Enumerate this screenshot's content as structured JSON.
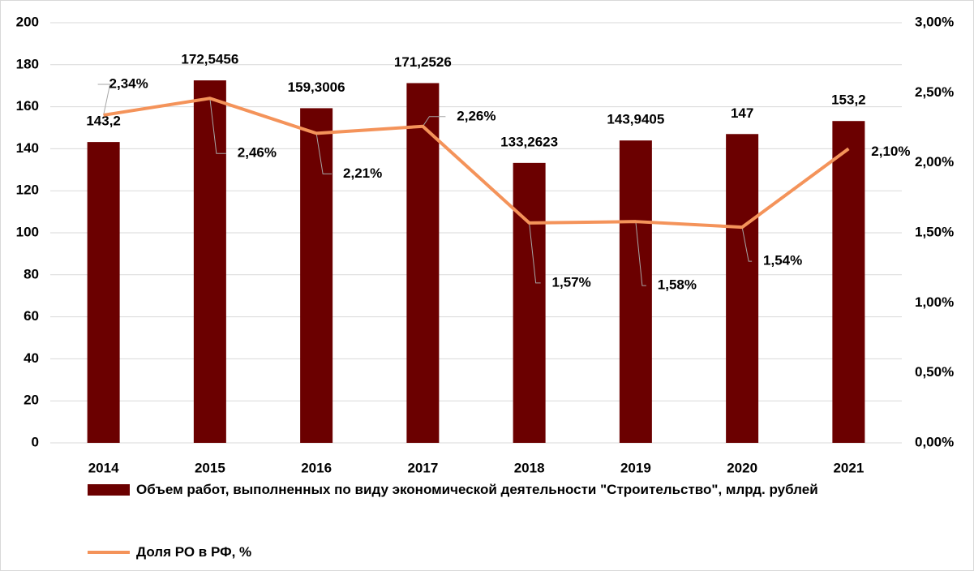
{
  "chart_data": {
    "type": "bar",
    "categories": [
      "2014",
      "2015",
      "2016",
      "2017",
      "2018",
      "2019",
      "2020",
      "2021"
    ],
    "series": [
      {
        "name": "Объем работ, выполненных по виду экономической деятельности \"Строительство\", млрд. рублей",
        "type": "bar",
        "color": "#6b0000",
        "values": [
          143.2,
          172.5456,
          159.3006,
          171.2526,
          133.2623,
          143.9405,
          147,
          153.2
        ],
        "value_labels": [
          "143,2",
          "172,5456",
          "159,3006",
          "171,2526",
          "133,2623",
          "143,9405",
          "147",
          "153,2"
        ]
      },
      {
        "name": "Доля РО в РФ, %",
        "type": "line",
        "axis": "y2",
        "color": "#f4935a",
        "values": [
          2.34,
          2.46,
          2.21,
          2.26,
          1.57,
          1.58,
          1.54,
          2.1
        ],
        "value_labels": [
          "2,34%",
          "2,46%",
          "2,21%",
          "2,26%",
          "1,57%",
          "1,58%",
          "1,54%",
          "2,10%"
        ]
      }
    ],
    "ylim": [
      0,
      200
    ],
    "yticks": [
      0,
      20,
      40,
      60,
      80,
      100,
      120,
      140,
      160,
      180,
      200
    ],
    "y2lim": [
      0,
      3
    ],
    "y2ticks": [
      {
        "value": 0,
        "label": "0,00%"
      },
      {
        "value": 0.5,
        "label": "0,50%"
      },
      {
        "value": 1,
        "label": "1,00%"
      },
      {
        "value": 1.5,
        "label": "1,50%"
      },
      {
        "value": 2,
        "label": "2,00%"
      },
      {
        "value": 2.5,
        "label": "2,50%"
      },
      {
        "value": 3,
        "label": "3,00%"
      }
    ],
    "grid": true,
    "legend": "bottom"
  }
}
